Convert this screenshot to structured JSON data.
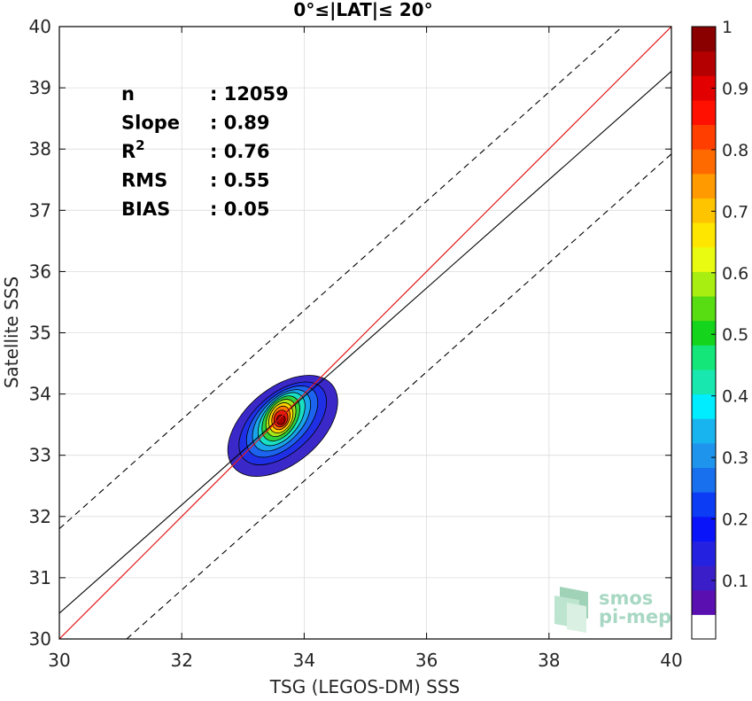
{
  "chart_data": {
    "type": "heatmap",
    "title": "0°≤|LAT|≤ 20°",
    "xlabel": "TSG (LEGOS-DM) SSS",
    "ylabel": "Satellite SSS",
    "xlim": [
      30,
      40
    ],
    "ylim": [
      30,
      40
    ],
    "xticks": [
      30,
      32,
      34,
      36,
      38,
      40
    ],
    "yticks": [
      30,
      31,
      32,
      33,
      34,
      35,
      36,
      37,
      38,
      39,
      40
    ],
    "grid": true,
    "stats": [
      {
        "label": "n",
        "value": ": 12059"
      },
      {
        "label": "Slope",
        "value": ": 0.89"
      },
      {
        "label": "R",
        "sup": "2",
        "value": ": 0.76"
      },
      {
        "label": "RMS",
        "value": ": 0.55"
      },
      {
        "label": "BIAS",
        "value": ": 0.05"
      }
    ],
    "lines": {
      "one_to_one": {
        "x": [
          30,
          40
        ],
        "y": [
          30,
          40
        ],
        "color": "#e31a1c"
      },
      "fit": {
        "x": [
          30,
          40
        ],
        "y": [
          30.42,
          39.27
        ],
        "color": "#000000"
      },
      "upper_dashed": {
        "x": [
          30,
          39.2
        ],
        "y": [
          31.8,
          40
        ],
        "color": "#000000"
      },
      "lower_dashed": {
        "x": [
          31.1,
          40
        ],
        "y": [
          30,
          37.92
        ],
        "color": "#000000"
      }
    },
    "density_center": {
      "x": 33.62,
      "y": 33.6
    },
    "contour_levels": [
      {
        "level": 0.05,
        "color": "#3b28c8",
        "cx": 33.65,
        "cy": 33.48,
        "rx": 1.05,
        "ry": 0.62,
        "angle": 40
      },
      {
        "level": 0.1,
        "color": "#1f2fe6",
        "cx": 33.65,
        "cy": 33.52,
        "rx": 0.86,
        "ry": 0.48,
        "angle": 42
      },
      {
        "level": 0.2,
        "color": "#1c64f0",
        "cx": 33.64,
        "cy": 33.55,
        "rx": 0.72,
        "ry": 0.4,
        "angle": 45
      },
      {
        "level": 0.3,
        "color": "#1aa4ea",
        "cx": 33.63,
        "cy": 33.57,
        "rx": 0.6,
        "ry": 0.34,
        "angle": 48
      },
      {
        "level": 0.4,
        "color": "#19e0c4",
        "cx": 33.63,
        "cy": 33.59,
        "rx": 0.5,
        "ry": 0.29,
        "angle": 52
      },
      {
        "level": 0.5,
        "color": "#2fd13c",
        "cx": 33.62,
        "cy": 33.6,
        "rx": 0.41,
        "ry": 0.25,
        "angle": 56
      },
      {
        "level": 0.6,
        "color": "#a8e61a",
        "cx": 33.62,
        "cy": 33.61,
        "rx": 0.33,
        "ry": 0.21,
        "angle": 60
      },
      {
        "level": 0.7,
        "color": "#ffd400",
        "cx": 33.62,
        "cy": 33.61,
        "rx": 0.26,
        "ry": 0.18,
        "angle": 64
      },
      {
        "level": 0.8,
        "color": "#ff7a00",
        "cx": 33.62,
        "cy": 33.61,
        "rx": 0.2,
        "ry": 0.14,
        "angle": 68
      },
      {
        "level": 0.9,
        "color": "#e81a0c",
        "cx": 33.62,
        "cy": 33.6,
        "rx": 0.14,
        "ry": 0.11,
        "angle": 70
      },
      {
        "level": 1.0,
        "color": "#a50000",
        "cx": 33.62,
        "cy": 33.58,
        "rx": 0.08,
        "ry": 0.07,
        "angle": 72
      }
    ],
    "colorbar": {
      "colors": [
        "#ffffff",
        "#5a0fb0",
        "#3a1ec8",
        "#2422e0",
        "#0a14f8",
        "#0c3cf4",
        "#1870ee",
        "#1f94ec",
        "#18b4f0",
        "#00ecff",
        "#18e8b0",
        "#14e67a",
        "#14d41c",
        "#58dc12",
        "#a8ee10",
        "#e8fb10",
        "#ffe600",
        "#ffc400",
        "#ff9a00",
        "#ff6a00",
        "#ff3e00",
        "#ff1000",
        "#e20000",
        "#b40000",
        "#8a0000"
      ],
      "ticks": [
        "0.1",
        "0.2",
        "0.3",
        "0.4",
        "0.5",
        "0.6",
        "0.7",
        "0.8",
        "0.9",
        "1"
      ]
    }
  },
  "watermark": {
    "line1": "smos",
    "line2": "pi-mep"
  }
}
